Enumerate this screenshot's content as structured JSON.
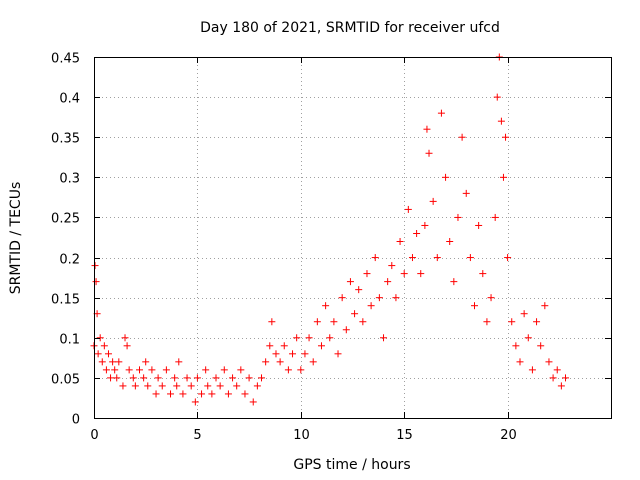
{
  "chart_data": {
    "type": "scatter",
    "title": "Day 180 of 2021, SRMTID for receiver ufcd",
    "xlabel": "GPS time / hours",
    "ylabel": "SRMTID / TECUs",
    "xlim": [
      0,
      25
    ],
    "ylim": [
      0,
      0.45
    ],
    "grid": true,
    "x_ticks": [
      0,
      5,
      10,
      15,
      20
    ],
    "x_tick_labels": [
      "0",
      "5",
      "10",
      "15",
      "20"
    ],
    "y_ticks": [
      0,
      0.05,
      0.1,
      0.15,
      0.2,
      0.25,
      0.3,
      0.35,
      0.4,
      0.45
    ],
    "y_tick_labels": [
      "0",
      "0.05",
      "0.1",
      "0.15",
      "0.2",
      "0.25",
      "0.3",
      "0.35",
      "0.4",
      "0.45"
    ],
    "marker": "+",
    "color": "#ff0000",
    "series": [
      {
        "name": "SRMTID",
        "points": [
          [
            0.0,
            0.09
          ],
          [
            0.05,
            0.19
          ],
          [
            0.1,
            0.17
          ],
          [
            0.15,
            0.13
          ],
          [
            0.2,
            0.08
          ],
          [
            0.3,
            0.1
          ],
          [
            0.4,
            0.07
          ],
          [
            0.5,
            0.09
          ],
          [
            0.6,
            0.06
          ],
          [
            0.7,
            0.08
          ],
          [
            0.8,
            0.05
          ],
          [
            0.9,
            0.07
          ],
          [
            1.0,
            0.06
          ],
          [
            1.1,
            0.05
          ],
          [
            1.2,
            0.07
          ],
          [
            1.4,
            0.04
          ],
          [
            1.5,
            0.1
          ],
          [
            1.6,
            0.09
          ],
          [
            1.7,
            0.06
          ],
          [
            1.9,
            0.05
          ],
          [
            2.0,
            0.04
          ],
          [
            2.2,
            0.06
          ],
          [
            2.4,
            0.05
          ],
          [
            2.5,
            0.07
          ],
          [
            2.6,
            0.04
          ],
          [
            2.8,
            0.06
          ],
          [
            3.0,
            0.03
          ],
          [
            3.1,
            0.05
          ],
          [
            3.3,
            0.04
          ],
          [
            3.5,
            0.06
          ],
          [
            3.7,
            0.03
          ],
          [
            3.9,
            0.05
          ],
          [
            4.0,
            0.04
          ],
          [
            4.1,
            0.07
          ],
          [
            4.3,
            0.03
          ],
          [
            4.5,
            0.05
          ],
          [
            4.7,
            0.04
          ],
          [
            4.9,
            0.02
          ],
          [
            5.0,
            0.05
          ],
          [
            5.2,
            0.03
          ],
          [
            5.4,
            0.06
          ],
          [
            5.5,
            0.04
          ],
          [
            5.7,
            0.03
          ],
          [
            5.9,
            0.05
          ],
          [
            6.1,
            0.04
          ],
          [
            6.3,
            0.06
          ],
          [
            6.5,
            0.03
          ],
          [
            6.7,
            0.05
          ],
          [
            6.9,
            0.04
          ],
          [
            7.1,
            0.06
          ],
          [
            7.3,
            0.03
          ],
          [
            7.5,
            0.05
          ],
          [
            7.7,
            0.02
          ],
          [
            7.9,
            0.04
          ],
          [
            8.1,
            0.05
          ],
          [
            8.3,
            0.07
          ],
          [
            8.5,
            0.09
          ],
          [
            8.6,
            0.12
          ],
          [
            8.8,
            0.08
          ],
          [
            9.0,
            0.07
          ],
          [
            9.2,
            0.09
          ],
          [
            9.4,
            0.06
          ],
          [
            9.6,
            0.08
          ],
          [
            9.8,
            0.1
          ],
          [
            10.0,
            0.06
          ],
          [
            10.2,
            0.08
          ],
          [
            10.4,
            0.1
          ],
          [
            10.6,
            0.07
          ],
          [
            10.8,
            0.12
          ],
          [
            11.0,
            0.09
          ],
          [
            11.2,
            0.14
          ],
          [
            11.4,
            0.1
          ],
          [
            11.6,
            0.12
          ],
          [
            11.8,
            0.08
          ],
          [
            12.0,
            0.15
          ],
          [
            12.2,
            0.11
          ],
          [
            12.4,
            0.17
          ],
          [
            12.6,
            0.13
          ],
          [
            12.8,
            0.16
          ],
          [
            13.0,
            0.12
          ],
          [
            13.2,
            0.18
          ],
          [
            13.4,
            0.14
          ],
          [
            13.6,
            0.2
          ],
          [
            13.8,
            0.15
          ],
          [
            14.0,
            0.1
          ],
          [
            14.2,
            0.17
          ],
          [
            14.4,
            0.19
          ],
          [
            14.6,
            0.15
          ],
          [
            14.8,
            0.22
          ],
          [
            15.0,
            0.18
          ],
          [
            15.2,
            0.26
          ],
          [
            15.4,
            0.2
          ],
          [
            15.6,
            0.23
          ],
          [
            15.8,
            0.18
          ],
          [
            16.0,
            0.24
          ],
          [
            16.1,
            0.36
          ],
          [
            16.2,
            0.33
          ],
          [
            16.4,
            0.27
          ],
          [
            16.6,
            0.2
          ],
          [
            16.8,
            0.38
          ],
          [
            17.0,
            0.3
          ],
          [
            17.2,
            0.22
          ],
          [
            17.4,
            0.17
          ],
          [
            17.6,
            0.25
          ],
          [
            17.8,
            0.35
          ],
          [
            18.0,
            0.28
          ],
          [
            18.2,
            0.2
          ],
          [
            18.4,
            0.14
          ],
          [
            18.6,
            0.24
          ],
          [
            18.8,
            0.18
          ],
          [
            19.0,
            0.12
          ],
          [
            19.2,
            0.15
          ],
          [
            19.4,
            0.25
          ],
          [
            19.5,
            0.4
          ],
          [
            19.6,
            0.45
          ],
          [
            19.7,
            0.37
          ],
          [
            19.8,
            0.3
          ],
          [
            19.9,
            0.35
          ],
          [
            20.0,
            0.2
          ],
          [
            20.2,
            0.12
          ],
          [
            20.4,
            0.09
          ],
          [
            20.6,
            0.07
          ],
          [
            20.8,
            0.13
          ],
          [
            21.0,
            0.1
          ],
          [
            21.2,
            0.06
          ],
          [
            21.4,
            0.12
          ],
          [
            21.6,
            0.09
          ],
          [
            21.8,
            0.14
          ],
          [
            22.0,
            0.07
          ],
          [
            22.2,
            0.05
          ],
          [
            22.4,
            0.06
          ],
          [
            22.6,
            0.04
          ],
          [
            22.8,
            0.05
          ]
        ]
      }
    ]
  }
}
